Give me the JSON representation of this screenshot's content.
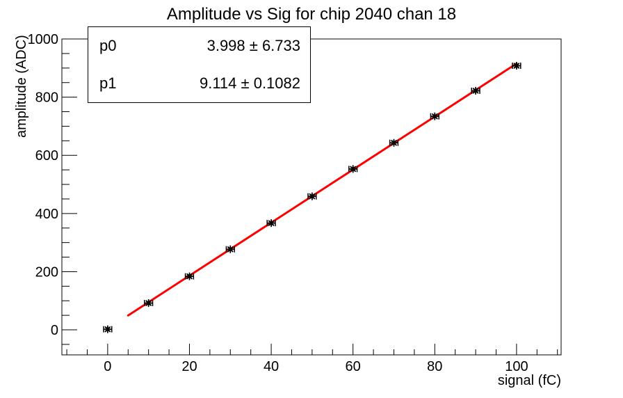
{
  "title": "Amplitude vs Sig for chip 2040 chan 18",
  "stats_box": {
    "rows": [
      {
        "name": "p0",
        "value": "3.998 ± 6.733"
      },
      {
        "name": "p1",
        "value": "9.114 ± 0.1082"
      }
    ]
  },
  "chart_data": {
    "type": "scatter",
    "title": "Amplitude vs Sig for chip 2040 chan 18",
    "xlabel": "signal (fC)",
    "ylabel": "amplitude (ADC)",
    "x": [
      0,
      10,
      20,
      30,
      40,
      50,
      60,
      70,
      80,
      90,
      100
    ],
    "y": [
      2,
      92,
      184,
      277,
      367,
      459,
      553,
      643,
      734,
      822,
      908
    ],
    "x_err": 1,
    "y_err": 5,
    "xlim": [
      -11.2,
      110.9
    ],
    "ylim": [
      -86,
      1000
    ],
    "x_major_ticks": [
      0,
      20,
      40,
      60,
      80,
      100
    ],
    "y_major_ticks": [
      0,
      200,
      400,
      600,
      800,
      1000
    ],
    "x_minor_step": 5,
    "y_minor_step": 50,
    "grid": false,
    "legend": "none",
    "marker": {
      "style": "asterisk",
      "color": "#000000"
    },
    "fit": {
      "type": "linear",
      "p0": 3.998,
      "p1": 9.114,
      "x_start": 5,
      "x_end": 100,
      "color": "#ff0000"
    },
    "frame_color": "#000000",
    "background_color": "#ffffff"
  }
}
